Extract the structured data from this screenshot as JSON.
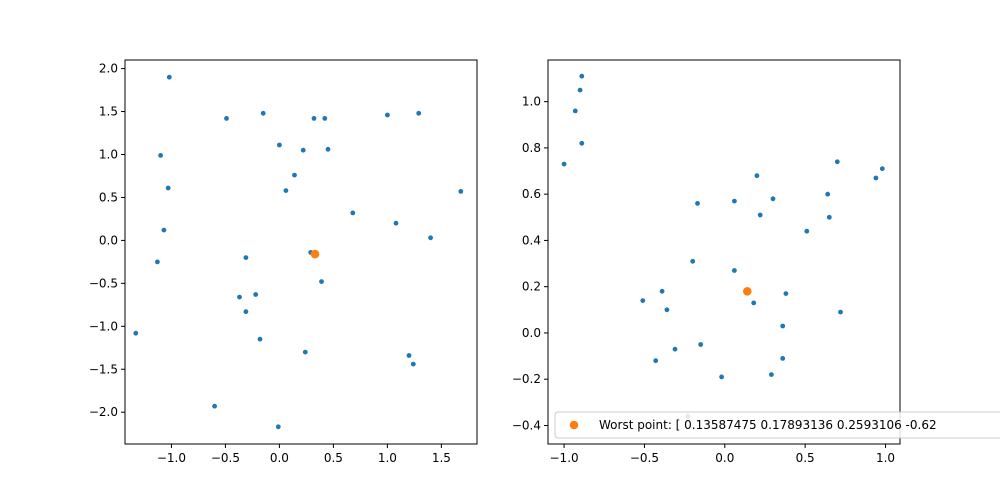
{
  "colors": {
    "scatter": "#1f77b4",
    "worst": "#ff7f0e",
    "axis": "#000000",
    "legend_border": "#cccccc"
  },
  "chart_data": [
    {
      "type": "scatter",
      "title": "",
      "xlabel": "",
      "ylabel": "",
      "xlim": [
        -1.43,
        1.83
      ],
      "ylim": [
        -2.37,
        2.1
      ],
      "xticks": [
        -1.0,
        -0.5,
        0.0,
        0.5,
        1.0,
        1.5
      ],
      "xtick_labels": [
        "−1.0",
        "−0.5",
        "0.0",
        "0.5",
        "1.0",
        "1.5"
      ],
      "yticks": [
        2.0,
        1.5,
        1.0,
        0.5,
        0.0,
        -0.5,
        -1.0,
        -1.5,
        -2.0
      ],
      "ytick_labels": [
        "2.0",
        "1.5",
        "1.0",
        "0.5",
        "0.0",
        "−0.5",
        "−1.0",
        "−1.5",
        "−2.0"
      ],
      "grid": false,
      "series": [
        {
          "color": "#1f77b4",
          "points": [
            [
              -1.02,
              1.9
            ],
            [
              -0.49,
              1.42
            ],
            [
              -0.15,
              1.48
            ],
            [
              0.32,
              1.42
            ],
            [
              0.42,
              1.42
            ],
            [
              1.0,
              1.46
            ],
            [
              1.29,
              1.48
            ],
            [
              -1.1,
              0.99
            ],
            [
              0.0,
              1.11
            ],
            [
              0.22,
              1.05
            ],
            [
              0.45,
              1.06
            ],
            [
              -1.03,
              0.61
            ],
            [
              0.14,
              0.76
            ],
            [
              0.06,
              0.58
            ],
            [
              1.68,
              0.57
            ],
            [
              0.68,
              0.32
            ],
            [
              1.08,
              0.2
            ],
            [
              -1.07,
              0.12
            ],
            [
              1.4,
              0.03
            ],
            [
              -1.13,
              -0.25
            ],
            [
              -0.31,
              -0.2
            ],
            [
              0.29,
              -0.14
            ],
            [
              0.39,
              -0.48
            ],
            [
              -0.37,
              -0.66
            ],
            [
              -0.22,
              -0.63
            ],
            [
              -0.31,
              -0.83
            ],
            [
              -1.33,
              -1.08
            ],
            [
              -0.18,
              -1.15
            ],
            [
              0.24,
              -1.3
            ],
            [
              1.2,
              -1.34
            ],
            [
              1.24,
              -1.44
            ],
            [
              -0.6,
              -1.93
            ],
            [
              -0.01,
              -2.17
            ]
          ]
        },
        {
          "color": "#ff7f0e",
          "points": [
            [
              0.33,
              -0.16
            ]
          ]
        }
      ]
    },
    {
      "type": "scatter",
      "title": "",
      "xlabel": "",
      "ylabel": "",
      "xlim": [
        -1.1,
        1.09
      ],
      "ylim": [
        -0.48,
        1.18
      ],
      "xticks": [
        -1.0,
        -0.5,
        0.0,
        0.5,
        1.0
      ],
      "xtick_labels": [
        "−1.0",
        "−0.5",
        "0.0",
        "0.5",
        "1.0"
      ],
      "yticks": [
        1.0,
        0.8,
        0.6,
        0.4,
        0.2,
        0.0,
        -0.2,
        -0.4
      ],
      "ytick_labels": [
        "1.0",
        "0.8",
        "0.6",
        "0.4",
        "0.2",
        "0.0",
        "−0.2",
        "−0.4"
      ],
      "grid": false,
      "legend": {
        "placement": "lower-left",
        "label": "Worst point: [ 0.13587475  0.17893136  0.2593106  -0.62"
      },
      "series": [
        {
          "color": "#1f77b4",
          "points": [
            [
              -0.89,
              1.11
            ],
            [
              -0.9,
              1.05
            ],
            [
              -0.93,
              0.96
            ],
            [
              -0.89,
              0.82
            ],
            [
              -1.0,
              0.73
            ],
            [
              0.7,
              0.74
            ],
            [
              0.98,
              0.71
            ],
            [
              0.2,
              0.68
            ],
            [
              0.94,
              0.67
            ],
            [
              0.64,
              0.6
            ],
            [
              0.3,
              0.58
            ],
            [
              0.06,
              0.57
            ],
            [
              -0.17,
              0.56
            ],
            [
              0.22,
              0.51
            ],
            [
              0.65,
              0.5
            ],
            [
              0.51,
              0.44
            ],
            [
              -0.2,
              0.31
            ],
            [
              0.06,
              0.27
            ],
            [
              -0.39,
              0.18
            ],
            [
              0.38,
              0.17
            ],
            [
              -0.51,
              0.14
            ],
            [
              0.18,
              0.13
            ],
            [
              -0.36,
              0.1
            ],
            [
              0.72,
              0.09
            ],
            [
              0.36,
              0.03
            ],
            [
              -0.15,
              -0.05
            ],
            [
              -0.31,
              -0.07
            ],
            [
              0.36,
              -0.11
            ],
            [
              -0.43,
              -0.12
            ],
            [
              0.29,
              -0.18
            ],
            [
              -0.02,
              -0.19
            ],
            [
              -0.23,
              -0.36
            ]
          ]
        },
        {
          "color": "#ff7f0e",
          "points": [
            [
              0.14,
              0.18
            ]
          ]
        }
      ]
    }
  ]
}
